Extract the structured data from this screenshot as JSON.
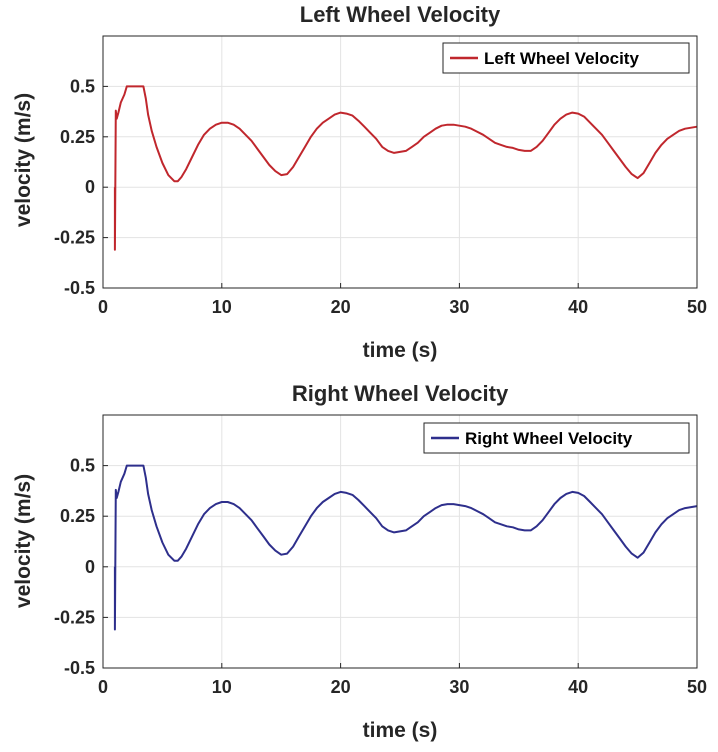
{
  "chart_data": [
    {
      "type": "line",
      "title": "Left Wheel Velocity",
      "xlabel": "time (s)",
      "ylabel": "velocity (m/s)",
      "xlim": [
        0,
        50
      ],
      "ylim": [
        -0.5,
        0.75
      ],
      "xticks": [
        "0",
        "10",
        "20",
        "30",
        "40",
        "50"
      ],
      "yticks": [
        "-0.5",
        "-0.25",
        "0",
        "0.25",
        "0.5"
      ],
      "grid": true,
      "legend": "top-right",
      "series": [
        {
          "name": "Left Wheel Velocity",
          "color": "#c0272d",
          "x": [
            1.0,
            1.0,
            1.08,
            1.15,
            1.3,
            1.5,
            1.8,
            2.0,
            2.3,
            2.6,
            3.0,
            3.4,
            3.6,
            3.8,
            4.1,
            4.5,
            5.0,
            5.5,
            6.0,
            6.3,
            6.6,
            7.0,
            7.5,
            8.0,
            8.5,
            9.0,
            9.5,
            10.0,
            10.5,
            11.0,
            11.5,
            12.0,
            12.5,
            13.0,
            13.5,
            14.0,
            14.5,
            15.0,
            15.5,
            16.0,
            16.5,
            17.0,
            17.5,
            18.0,
            18.5,
            19.0,
            19.5,
            20.0,
            20.5,
            21.0,
            21.5,
            22.0,
            22.5,
            23.0,
            23.5,
            24.0,
            24.5,
            25.0,
            25.5,
            26.0,
            26.5,
            27.0,
            27.5,
            28.0,
            28.5,
            29.0,
            29.5,
            30.0,
            30.5,
            31.0,
            31.5,
            32.0,
            32.5,
            33.0,
            33.5,
            34.0,
            34.5,
            35.0,
            35.5,
            36.0,
            36.5,
            37.0,
            37.5,
            38.0,
            38.5,
            39.0,
            39.5,
            40.0,
            40.5,
            41.0,
            41.5,
            42.0,
            42.5,
            43.0,
            43.5,
            44.0,
            44.5,
            45.0,
            45.5,
            46.0,
            46.5,
            47.0,
            47.5,
            48.0,
            48.5,
            49.0,
            49.5,
            50.0
          ],
          "y": [
            0.0,
            -0.31,
            0.38,
            0.34,
            0.37,
            0.42,
            0.46,
            0.5,
            0.5,
            0.5,
            0.5,
            0.5,
            0.44,
            0.36,
            0.28,
            0.2,
            0.12,
            0.06,
            0.03,
            0.03,
            0.05,
            0.09,
            0.15,
            0.21,
            0.26,
            0.29,
            0.31,
            0.32,
            0.32,
            0.31,
            0.29,
            0.26,
            0.23,
            0.19,
            0.15,
            0.11,
            0.08,
            0.06,
            0.065,
            0.1,
            0.15,
            0.2,
            0.25,
            0.29,
            0.32,
            0.34,
            0.36,
            0.37,
            0.365,
            0.355,
            0.33,
            0.3,
            0.27,
            0.24,
            0.2,
            0.18,
            0.17,
            0.175,
            0.18,
            0.2,
            0.22,
            0.25,
            0.27,
            0.29,
            0.305,
            0.31,
            0.31,
            0.305,
            0.3,
            0.29,
            0.275,
            0.26,
            0.24,
            0.22,
            0.21,
            0.2,
            0.195,
            0.185,
            0.18,
            0.18,
            0.2,
            0.23,
            0.27,
            0.31,
            0.34,
            0.36,
            0.37,
            0.365,
            0.35,
            0.32,
            0.29,
            0.26,
            0.22,
            0.18,
            0.14,
            0.1,
            0.065,
            0.045,
            0.07,
            0.12,
            0.17,
            0.21,
            0.24,
            0.26,
            0.28,
            0.29,
            0.295,
            0.3
          ]
        }
      ]
    },
    {
      "type": "line",
      "title": "Right Wheel Velocity",
      "xlabel": "time (s)",
      "ylabel": "velocity (m/s)",
      "xlim": [
        0,
        50
      ],
      "ylim": [
        -0.5,
        0.75
      ],
      "xticks": [
        "0",
        "10",
        "20",
        "30",
        "40",
        "50"
      ],
      "yticks": [
        "-0.5",
        "-0.25",
        "0",
        "0.25",
        "0.5"
      ],
      "grid": true,
      "legend": "top-right",
      "series": [
        {
          "name": "Right Wheel Velocity",
          "color": "#2e2f8c",
          "x": [
            1.0,
            1.0,
            1.08,
            1.15,
            1.3,
            1.5,
            1.8,
            2.0,
            2.3,
            2.6,
            3.0,
            3.4,
            3.6,
            3.8,
            4.1,
            4.5,
            5.0,
            5.5,
            6.0,
            6.3,
            6.6,
            7.0,
            7.5,
            8.0,
            8.5,
            9.0,
            9.5,
            10.0,
            10.5,
            11.0,
            11.5,
            12.0,
            12.5,
            13.0,
            13.5,
            14.0,
            14.5,
            15.0,
            15.5,
            16.0,
            16.5,
            17.0,
            17.5,
            18.0,
            18.5,
            19.0,
            19.5,
            20.0,
            20.5,
            21.0,
            21.5,
            22.0,
            22.5,
            23.0,
            23.5,
            24.0,
            24.5,
            25.0,
            25.5,
            26.0,
            26.5,
            27.0,
            27.5,
            28.0,
            28.5,
            29.0,
            29.5,
            30.0,
            30.5,
            31.0,
            31.5,
            32.0,
            32.5,
            33.0,
            33.5,
            34.0,
            34.5,
            35.0,
            35.5,
            36.0,
            36.5,
            37.0,
            37.5,
            38.0,
            38.5,
            39.0,
            39.5,
            40.0,
            40.5,
            41.0,
            41.5,
            42.0,
            42.5,
            43.0,
            43.5,
            44.0,
            44.5,
            45.0,
            45.5,
            46.0,
            46.5,
            47.0,
            47.5,
            48.0,
            48.5,
            49.0,
            49.5,
            50.0
          ],
          "y": [
            0.0,
            -0.31,
            0.38,
            0.34,
            0.37,
            0.42,
            0.46,
            0.5,
            0.5,
            0.5,
            0.5,
            0.5,
            0.44,
            0.36,
            0.28,
            0.2,
            0.12,
            0.06,
            0.03,
            0.03,
            0.05,
            0.09,
            0.15,
            0.21,
            0.26,
            0.29,
            0.31,
            0.32,
            0.32,
            0.31,
            0.29,
            0.26,
            0.23,
            0.19,
            0.15,
            0.11,
            0.08,
            0.06,
            0.065,
            0.1,
            0.15,
            0.2,
            0.25,
            0.29,
            0.32,
            0.34,
            0.36,
            0.37,
            0.365,
            0.355,
            0.33,
            0.3,
            0.27,
            0.24,
            0.2,
            0.18,
            0.17,
            0.175,
            0.18,
            0.2,
            0.22,
            0.25,
            0.27,
            0.29,
            0.305,
            0.31,
            0.31,
            0.305,
            0.3,
            0.29,
            0.275,
            0.26,
            0.24,
            0.22,
            0.21,
            0.2,
            0.195,
            0.185,
            0.18,
            0.18,
            0.2,
            0.23,
            0.27,
            0.31,
            0.34,
            0.36,
            0.37,
            0.365,
            0.35,
            0.32,
            0.29,
            0.26,
            0.22,
            0.18,
            0.14,
            0.1,
            0.065,
            0.045,
            0.07,
            0.12,
            0.17,
            0.21,
            0.24,
            0.26,
            0.28,
            0.29,
            0.295,
            0.3
          ]
        }
      ]
    }
  ]
}
